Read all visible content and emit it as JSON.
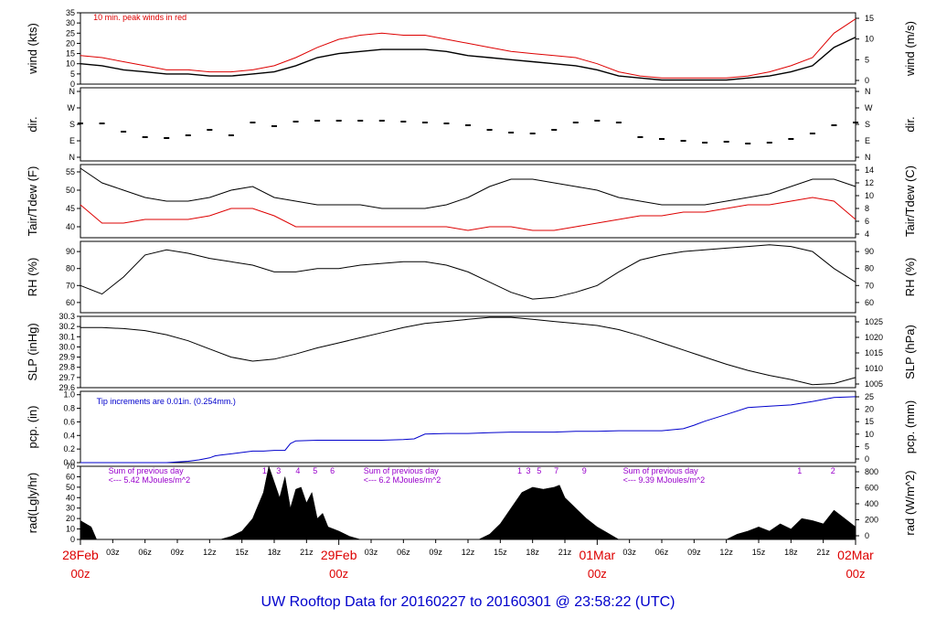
{
  "title": "UW Rooftop Data for 20160227  to  20160301 @ 23:58:22  (UTC)",
  "colors": {
    "black": "#000000",
    "red": "#dd0000",
    "blue": "#0000cc",
    "purple": "#9900cc"
  },
  "chart_data": [
    {
      "type": "line",
      "name": "wind",
      "ylabel": "wind (kts)",
      "ylabel_right": "wind (m/s)",
      "ylim": [
        0,
        35
      ],
      "yticks": [
        "0",
        "5",
        "10",
        "15",
        "20",
        "25",
        "30",
        "35"
      ],
      "yticks_right": [
        "0",
        "5",
        "10",
        "15"
      ],
      "annotation": "10 min. peak winds in red",
      "x": [
        0,
        2,
        4,
        6,
        8,
        10,
        12,
        14,
        16,
        18,
        20,
        22,
        24,
        26,
        28,
        30,
        32,
        34,
        36,
        38,
        40,
        42,
        44,
        46,
        48,
        50,
        52,
        54,
        56,
        58,
        60,
        62,
        64,
        66,
        68,
        70,
        72
      ],
      "series": [
        {
          "values": [
            10,
            9,
            7,
            6,
            5,
            5,
            4,
            4,
            5,
            6,
            9,
            13,
            15,
            16,
            17,
            17,
            17,
            16,
            14,
            13,
            12,
            11,
            10,
            9,
            7,
            4,
            3,
            2,
            2,
            2,
            2,
            3,
            4,
            6,
            9,
            18,
            23
          ]
        },
        {
          "values": [
            14,
            13,
            11,
            9,
            7,
            7,
            6,
            6,
            7,
            9,
            13,
            18,
            22,
            24,
            25,
            24,
            24,
            22,
            20,
            18,
            16,
            15,
            14,
            13,
            10,
            6,
            4,
            3,
            3,
            3,
            3,
            4,
            6,
            9,
            13,
            25,
            32
          ]
        }
      ]
    },
    {
      "type": "scatter",
      "name": "dir",
      "ylabel": "dir.",
      "ylabel_right": "dir.",
      "yticks": [
        "N",
        "W",
        "S",
        "E",
        "N"
      ],
      "ylim": [
        0,
        360
      ],
      "x": [
        0,
        2,
        4,
        6,
        8,
        10,
        12,
        14,
        16,
        18,
        20,
        22,
        24,
        26,
        28,
        30,
        32,
        34,
        36,
        38,
        40,
        42,
        44,
        46,
        48,
        50,
        52,
        54,
        56,
        58,
        60,
        62,
        64,
        66,
        68,
        70,
        72
      ],
      "values": [
        185,
        185,
        140,
        110,
        105,
        120,
        150,
        120,
        190,
        170,
        195,
        200,
        200,
        200,
        200,
        195,
        190,
        185,
        175,
        150,
        135,
        130,
        150,
        190,
        200,
        190,
        110,
        100,
        90,
        80,
        85,
        75,
        80,
        100,
        130,
        175,
        190
      ]
    },
    {
      "type": "line",
      "name": "temp",
      "ylabel": "Tair/Tdew (F)",
      "ylabel_right": "Tair/Tdew (C)",
      "ylim": [
        37,
        57
      ],
      "yticks": [
        "40",
        "45",
        "50",
        "55"
      ],
      "yticks_right": [
        "4",
        "6",
        "8",
        "10",
        "12",
        "14"
      ],
      "x": [
        0,
        2,
        4,
        6,
        8,
        10,
        12,
        14,
        16,
        18,
        20,
        22,
        24,
        26,
        28,
        30,
        32,
        34,
        36,
        38,
        40,
        42,
        44,
        46,
        48,
        50,
        52,
        54,
        56,
        58,
        60,
        62,
        64,
        66,
        68,
        70,
        72
      ],
      "series": [
        {
          "values": [
            56,
            52,
            50,
            48,
            47,
            47,
            48,
            50,
            51,
            48,
            47,
            46,
            46,
            46,
            45,
            45,
            45,
            46,
            48,
            51,
            53,
            53,
            52,
            51,
            50,
            48,
            47,
            46,
            46,
            46,
            47,
            48,
            49,
            51,
            53,
            53,
            51
          ]
        },
        {
          "values": [
            46,
            41,
            41,
            42,
            42,
            42,
            43,
            45,
            45,
            43,
            40,
            40,
            40,
            40,
            40,
            40,
            40,
            40,
            39,
            40,
            40,
            39,
            39,
            40,
            41,
            42,
            43,
            43,
            44,
            44,
            45,
            46,
            46,
            47,
            48,
            47,
            42
          ]
        }
      ]
    },
    {
      "type": "line",
      "name": "rh",
      "ylabel": "RH (%)",
      "ylabel_right": "RH (%)",
      "ylim": [
        54,
        96
      ],
      "yticks": [
        "60",
        "70",
        "80",
        "90"
      ],
      "x": [
        0,
        2,
        4,
        6,
        8,
        10,
        12,
        14,
        16,
        18,
        20,
        22,
        24,
        26,
        28,
        30,
        32,
        34,
        36,
        38,
        40,
        42,
        44,
        46,
        48,
        50,
        52,
        54,
        56,
        58,
        60,
        62,
        64,
        66,
        68,
        70,
        72
      ],
      "series": [
        {
          "values": [
            70,
            65,
            75,
            88,
            91,
            89,
            86,
            84,
            82,
            78,
            78,
            80,
            80,
            82,
            83,
            84,
            84,
            82,
            78,
            72,
            66,
            62,
            63,
            66,
            70,
            78,
            85,
            88,
            90,
            91,
            92,
            93,
            94,
            93,
            90,
            80,
            72
          ]
        }
      ]
    },
    {
      "type": "line",
      "name": "slp",
      "ylabel": "SLP (inHg)",
      "ylabel_right": "SLP (hPa)",
      "ylim": [
        29.6,
        30.3
      ],
      "yticks": [
        "29.6",
        "29.7",
        "29.8",
        "29.9",
        "30.0",
        "30.1",
        "30.2",
        "30.3"
      ],
      "yticks_right": [
        "1005",
        "1010",
        "1015",
        "1020",
        "1025"
      ],
      "x": [
        0,
        2,
        4,
        6,
        8,
        10,
        12,
        14,
        16,
        18,
        20,
        22,
        24,
        26,
        28,
        30,
        32,
        34,
        36,
        38,
        40,
        42,
        44,
        46,
        48,
        50,
        52,
        54,
        56,
        58,
        60,
        62,
        64,
        66,
        68,
        70,
        72
      ],
      "series": [
        {
          "values": [
            30.19,
            30.19,
            30.18,
            30.16,
            30.12,
            30.06,
            29.98,
            29.9,
            29.86,
            29.88,
            29.93,
            29.99,
            30.04,
            30.09,
            30.14,
            30.19,
            30.23,
            30.25,
            30.27,
            30.29,
            30.29,
            30.27,
            30.25,
            30.23,
            30.21,
            30.17,
            30.11,
            30.04,
            29.97,
            29.9,
            29.83,
            29.77,
            29.72,
            29.68,
            29.63,
            29.64,
            29.7
          ]
        }
      ]
    },
    {
      "type": "line",
      "name": "pcp",
      "ylabel": "pcp. (in)",
      "ylabel_right": "pcp. (mm)",
      "ylim": [
        0,
        1.05
      ],
      "yticks": [
        "0.0",
        "0.2",
        "0.4",
        "0.6",
        "0.8",
        "1.0"
      ],
      "yticks_right": [
        "0",
        "5",
        "10",
        "15",
        "20",
        "25"
      ],
      "annotation": "Tip increments are 0.01in. (0.254mm.)",
      "x": [
        0,
        8,
        9,
        10,
        11,
        12,
        12.5,
        13,
        15,
        16,
        17,
        18,
        19,
        19.5,
        20,
        22,
        24,
        26,
        28,
        30,
        31,
        32,
        34,
        36,
        38,
        40,
        42,
        44,
        46,
        48,
        50,
        52,
        54,
        56,
        57,
        58,
        60,
        62,
        64,
        66,
        68,
        69,
        70,
        72
      ],
      "series": [
        {
          "values": [
            0,
            0,
            0.01,
            0.02,
            0.04,
            0.07,
            0.1,
            0.11,
            0.15,
            0.17,
            0.17,
            0.18,
            0.18,
            0.28,
            0.32,
            0.33,
            0.33,
            0.33,
            0.33,
            0.34,
            0.35,
            0.42,
            0.43,
            0.43,
            0.44,
            0.45,
            0.45,
            0.45,
            0.46,
            0.46,
            0.47,
            0.47,
            0.47,
            0.5,
            0.55,
            0.61,
            0.71,
            0.81,
            0.83,
            0.85,
            0.9,
            0.93,
            0.96,
            0.97
          ]
        }
      ]
    },
    {
      "type": "area",
      "name": "rad",
      "ylabel": "rad(Lgly/hr)",
      "ylabel_right": "rad (W/m^2)",
      "ylim": [
        0,
        70
      ],
      "yticks": [
        "0",
        "10",
        "20",
        "30",
        "40",
        "50",
        "60",
        "70"
      ],
      "yticks_right": [
        "0",
        "200",
        "400",
        "600",
        "800"
      ],
      "annotations": [
        {
          "text": "Sum of previous day",
          "x": 2.6
        },
        {
          "text": "<--- 5.42 MJoules/m^2",
          "x": 2.6
        },
        {
          "text": "Sum of previous day",
          "x": 26.3
        },
        {
          "text": "<--- 6.2 MJoules/m^2",
          "x": 26.3
        },
        {
          "text": "Sum of previous day",
          "x": 50.4
        },
        {
          "text": "<--- 9.39 MJoules/m^2",
          "x": 50.4
        }
      ],
      "tip_labels": [
        {
          "text": "1",
          "x": 17.1
        },
        {
          "text": "3",
          "x": 18.4
        },
        {
          "text": "4",
          "x": 20.2
        },
        {
          "text": "5",
          "x": 21.8
        },
        {
          "text": "6",
          "x": 23.4
        },
        {
          "text": "1",
          "x": 40.8
        },
        {
          "text": "3",
          "x": 41.6
        },
        {
          "text": "5",
          "x": 42.6
        },
        {
          "text": "7",
          "x": 44.2
        },
        {
          "text": "9",
          "x": 46.8
        },
        {
          "text": "1",
          "x": 66.8
        },
        {
          "text": "2",
          "x": 69.9
        }
      ],
      "x": [
        0,
        1,
        1.5,
        13,
        14,
        15,
        16,
        17,
        17.5,
        18,
        18.5,
        19,
        19.5,
        20,
        20.5,
        21,
        21.5,
        22,
        22.5,
        23,
        24,
        25,
        26,
        37,
        38,
        39,
        40,
        41,
        42,
        43,
        44,
        44.5,
        45,
        46,
        47,
        48,
        49,
        50,
        60,
        61,
        62,
        63,
        64,
        65,
        66,
        67,
        68,
        69,
        70,
        71,
        72
      ],
      "series": [
        {
          "values": [
            18,
            12,
            0,
            0,
            3,
            8,
            20,
            45,
            70,
            55,
            40,
            60,
            30,
            48,
            50,
            35,
            45,
            20,
            25,
            12,
            8,
            3,
            0,
            0,
            5,
            15,
            30,
            45,
            50,
            48,
            50,
            52,
            40,
            30,
            20,
            12,
            6,
            0,
            0,
            5,
            8,
            12,
            8,
            15,
            10,
            20,
            18,
            15,
            28,
            20,
            12
          ]
        }
      ]
    }
  ],
  "xaxis": {
    "ticks": [
      {
        "x": 3,
        "label": "03z"
      },
      {
        "x": 6,
        "label": "06z"
      },
      {
        "x": 9,
        "label": "09z"
      },
      {
        "x": 12,
        "label": "12z"
      },
      {
        "x": 15,
        "label": "15z"
      },
      {
        "x": 18,
        "label": "18z"
      },
      {
        "x": 21,
        "label": "21z"
      },
      {
        "x": 27,
        "label": "03z"
      },
      {
        "x": 30,
        "label": "06z"
      },
      {
        "x": 33,
        "label": "09z"
      },
      {
        "x": 36,
        "label": "12z"
      },
      {
        "x": 39,
        "label": "15z"
      },
      {
        "x": 42,
        "label": "18z"
      },
      {
        "x": 45,
        "label": "21z"
      },
      {
        "x": 51,
        "label": "03z"
      },
      {
        "x": 54,
        "label": "06z"
      },
      {
        "x": 57,
        "label": "09z"
      },
      {
        "x": 60,
        "label": "12z"
      },
      {
        "x": 63,
        "label": "15z"
      },
      {
        "x": 66,
        "label": "18z"
      },
      {
        "x": 69,
        "label": "21z"
      }
    ],
    "days": [
      {
        "x": 0,
        "label": "28Feb",
        "sub": "00z"
      },
      {
        "x": 24,
        "label": "29Feb",
        "sub": "00z"
      },
      {
        "x": 48,
        "label": "01Mar",
        "sub": "00z"
      },
      {
        "x": 72,
        "label": "02Mar",
        "sub": "00z"
      }
    ]
  }
}
